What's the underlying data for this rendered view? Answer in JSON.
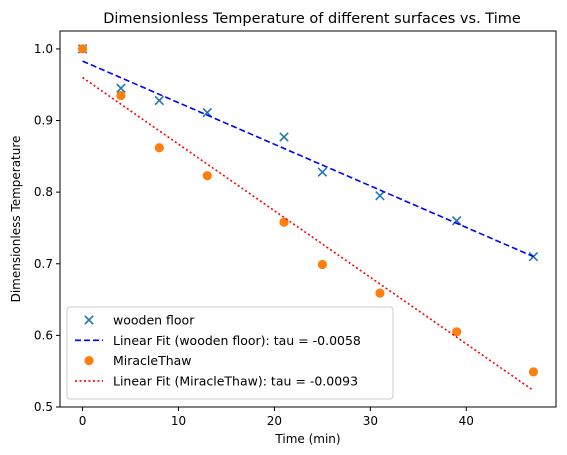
{
  "chart_data": {
    "type": "scatter",
    "title": "Dimensionless Temperature of different surfaces vs. Time",
    "xlabel": "Time (min)",
    "ylabel": "Dimensionless Temperature",
    "xlim": [
      -2.35,
      49.35
    ],
    "ylim": [
      0.5,
      1.025
    ],
    "xticks": [
      0,
      10,
      20,
      30,
      40
    ],
    "yticks": [
      0.5,
      0.6,
      0.7,
      0.8,
      0.9,
      1.0
    ],
    "xtick_labels": [
      "0",
      "10",
      "20",
      "30",
      "40"
    ],
    "ytick_labels": [
      "0.5",
      "0.6",
      "0.7",
      "0.8",
      "0.9",
      "1.0"
    ],
    "grid": false,
    "legend_position": "lower-left",
    "series": [
      {
        "name": "wooden floor",
        "kind": "scatter",
        "marker": "x",
        "color": "#1f77b4",
        "x": [
          0,
          4,
          8,
          13,
          21,
          25,
          31,
          39,
          47
        ],
        "y": [
          1.0,
          0.945,
          0.928,
          0.911,
          0.877,
          0.828,
          0.795,
          0.76,
          0.71
        ]
      },
      {
        "name": "Linear Fit (wooden floor): tau = -0.0058",
        "kind": "line",
        "style": "dashed",
        "color": "#0000ff",
        "x": [
          0,
          47
        ],
        "y": [
          0.983,
          0.71
        ]
      },
      {
        "name": "MiracleThaw",
        "kind": "scatter",
        "marker": "circle",
        "color": "#ff7f0e",
        "x": [
          0,
          4,
          8,
          13,
          21,
          25,
          31,
          39,
          47
        ],
        "y": [
          1.0,
          0.935,
          0.862,
          0.823,
          0.758,
          0.699,
          0.659,
          0.605,
          0.549
        ]
      },
      {
        "name": "Linear Fit (MiracleThaw): tau = -0.0093",
        "kind": "line",
        "style": "dotted",
        "color": "#ff0000",
        "x": [
          0,
          47
        ],
        "y": [
          0.96,
          0.523
        ]
      }
    ]
  }
}
